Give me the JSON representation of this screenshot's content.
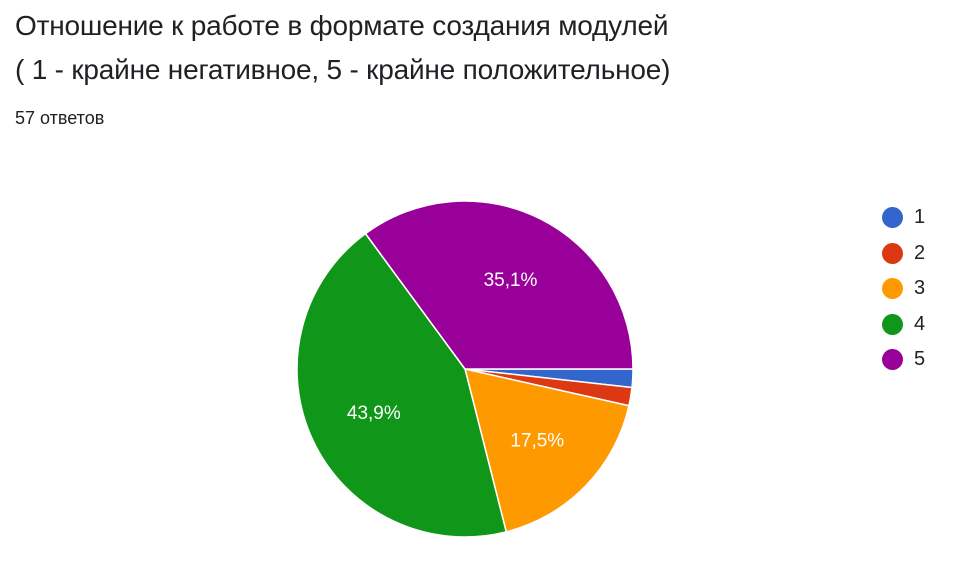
{
  "header": {
    "title_line1": "Отношение к работе в формате создания модулей",
    "title_line2": "( 1 - крайне негативное, 5 - крайне положительное)",
    "responses": "57 ответов"
  },
  "chart_data": {
    "type": "pie",
    "title": "Отношение к работе в формате создания модулей ( 1 - крайне негативное, 5 - крайне положительное)",
    "subtitle": "57 ответов",
    "categories": [
      "1",
      "2",
      "3",
      "4",
      "5"
    ],
    "values": [
      1,
      1,
      10,
      25,
      20
    ],
    "percentages": [
      1.8,
      1.8,
      17.5,
      43.9,
      35.1
    ],
    "labels": [
      "",
      "",
      "17,5%",
      "43,9%",
      "35,1%"
    ],
    "colors": [
      "#3366cc",
      "#dc3912",
      "#ff9900",
      "#109618",
      "#990099"
    ],
    "legend_position": "right"
  },
  "legend": {
    "items": [
      {
        "label": "1",
        "color": "#3366cc"
      },
      {
        "label": "2",
        "color": "#dc3912"
      },
      {
        "label": "3",
        "color": "#ff9900"
      },
      {
        "label": "4",
        "color": "#109618"
      },
      {
        "label": "5",
        "color": "#990099"
      }
    ]
  }
}
